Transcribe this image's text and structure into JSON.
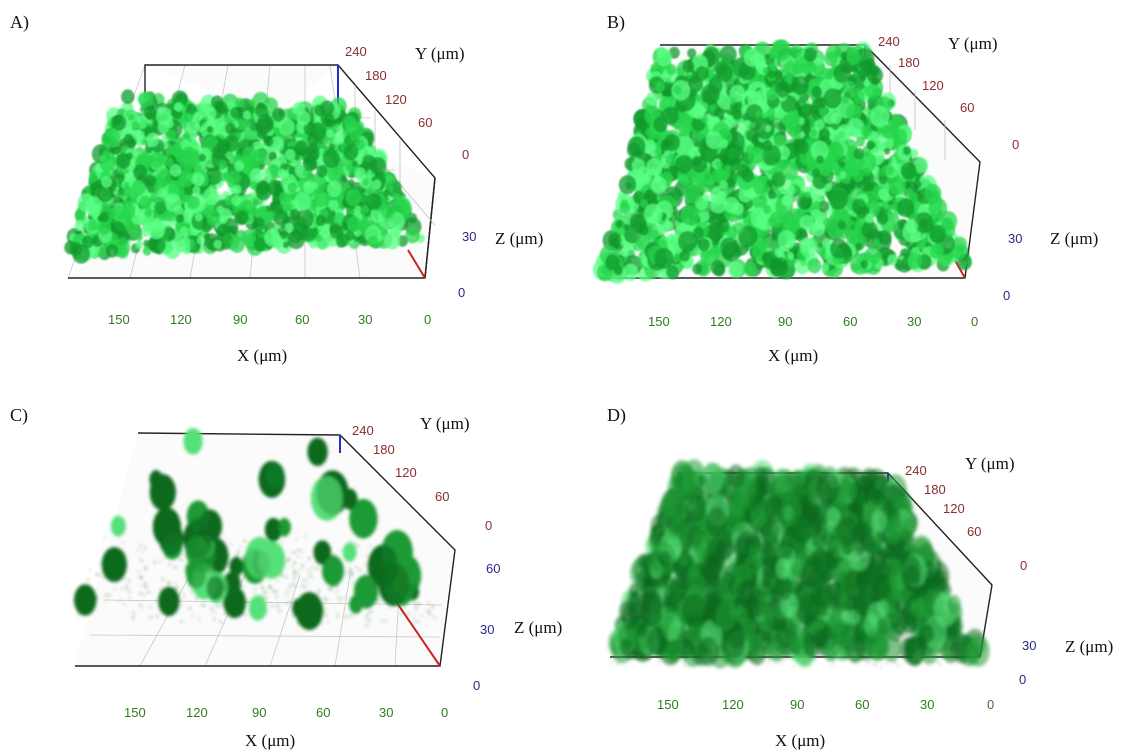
{
  "figure": {
    "accent_colors": {
      "x_ticks": "#2e7d1f",
      "y_ticks": "#8b2e2e",
      "z_ticks": "#2a2a8a",
      "biofilm_light": "#3dff6a",
      "biofilm_dark": "#0c6a1d"
    },
    "panels": [
      {
        "label": "A)",
        "x_title": "X (μm)",
        "y_title": "Y (μm)",
        "z_title": "Z (μm)",
        "x_ticks": [
          "150",
          "120",
          "90",
          "60",
          "30",
          "0"
        ],
        "y_ticks": [
          "240",
          "180",
          "120",
          "60",
          "0"
        ],
        "z_ticks": [
          "30",
          "0"
        ],
        "style": "bright"
      },
      {
        "label": "B)",
        "x_title": "X (μm)",
        "y_title": "Y (μm)",
        "z_title": "Z (μm)",
        "x_ticks": [
          "150",
          "120",
          "90",
          "60",
          "30",
          "0"
        ],
        "y_ticks": [
          "240",
          "180",
          "120",
          "60",
          "0"
        ],
        "z_ticks": [
          "30",
          "0"
        ],
        "style": "bright"
      },
      {
        "label": "C)",
        "x_title": "X (μm)",
        "y_title": "Y (μm)",
        "z_title": "Z (μm)",
        "x_ticks": [
          "150",
          "120",
          "90",
          "60",
          "30",
          "0"
        ],
        "y_ticks": [
          "240",
          "180",
          "120",
          "60",
          "0"
        ],
        "z_ticks": [
          "60",
          "30",
          "0"
        ],
        "style": "dark"
      },
      {
        "label": "D)",
        "x_title": "X (μm)",
        "y_title": "Y (μm)",
        "z_title": "Z (μm)",
        "x_ticks": [
          "150",
          "120",
          "90",
          "60",
          "30",
          "0"
        ],
        "y_ticks": [
          "240",
          "180",
          "120",
          "60",
          "0"
        ],
        "z_ticks": [
          "30",
          "0"
        ],
        "style": "dark"
      }
    ]
  }
}
